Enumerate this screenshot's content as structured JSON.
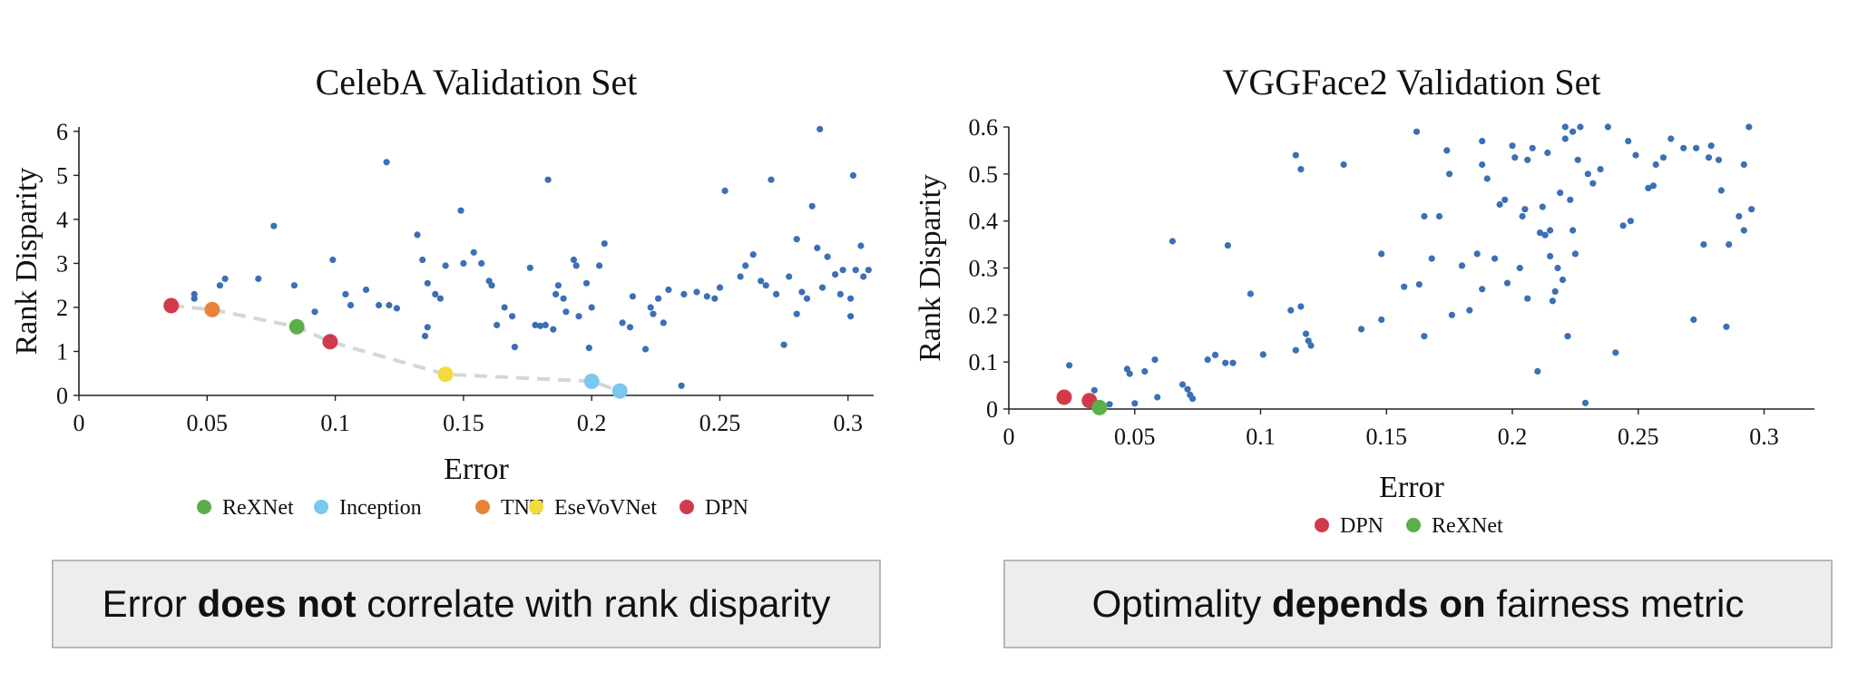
{
  "chart_data": [
    {
      "type": "scatter",
      "title": "CelebA Validation Set",
      "xlabel": "Error",
      "ylabel": "Rank Disparity",
      "xlim": [
        0,
        0.31
      ],
      "ylim": [
        0,
        6.1
      ],
      "xticks": [
        0,
        0.05,
        0.1,
        0.15,
        0.2,
        0.25,
        0.3
      ],
      "xtick_labels": [
        "0",
        "0.05",
        "0.1",
        "0.15",
        "0.2",
        "0.25",
        "0.3"
      ],
      "yticks": [
        0,
        1,
        2,
        3,
        4,
        5,
        6
      ],
      "ytick_labels": [
        "0",
        "1",
        "2",
        "3",
        "4",
        "5",
        "6"
      ],
      "grid": false,
      "point_color": "#3b6fb6",
      "pareto_front": [
        [
          0.036,
          2.04
        ],
        [
          0.052,
          1.95
        ],
        [
          0.085,
          1.56
        ],
        [
          0.098,
          1.22
        ],
        [
          0.143,
          0.48
        ],
        [
          0.2,
          0.32
        ],
        [
          0.211,
          0.1
        ]
      ],
      "highlights": [
        {
          "name": "DPN",
          "x": 0.036,
          "y": 2.04,
          "color": "#d13a4b"
        },
        {
          "name": "TNT",
          "x": 0.052,
          "y": 1.95,
          "color": "#e8843a"
        },
        {
          "name": "ReXNet",
          "x": 0.085,
          "y": 1.56,
          "color": "#5aaf4a"
        },
        {
          "name": "DPN",
          "x": 0.098,
          "y": 1.22,
          "color": "#d13a4b"
        },
        {
          "name": "EseVoVNet",
          "x": 0.143,
          "y": 0.48,
          "color": "#f2dc3c"
        },
        {
          "name": "Inception",
          "x": 0.2,
          "y": 0.32,
          "color": "#79c8ee"
        },
        {
          "name": "Inception",
          "x": 0.211,
          "y": 0.1,
          "color": "#79c8ee"
        }
      ],
      "legend": [
        {
          "label": "ReXNet",
          "color": "#5aaf4a"
        },
        {
          "label": "Inception",
          "color": "#79c8ee"
        },
        {
          "label": "TNT",
          "color": "#e8843a"
        },
        {
          "label": "EseVoVNet",
          "color": "#f2dc3c"
        },
        {
          "label": "DPN",
          "color": "#d13a4b"
        }
      ],
      "points": [
        [
          0.045,
          2.2
        ],
        [
          0.045,
          2.3
        ],
        [
          0.055,
          2.5
        ],
        [
          0.057,
          2.65
        ],
        [
          0.07,
          2.65
        ],
        [
          0.076,
          3.85
        ],
        [
          0.084,
          2.5
        ],
        [
          0.092,
          1.9
        ],
        [
          0.099,
          3.08
        ],
        [
          0.104,
          2.3
        ],
        [
          0.106,
          2.05
        ],
        [
          0.112,
          2.4
        ],
        [
          0.117,
          2.05
        ],
        [
          0.12,
          5.3
        ],
        [
          0.121,
          2.05
        ],
        [
          0.124,
          1.98
        ],
        [
          0.132,
          3.65
        ],
        [
          0.134,
          3.08
        ],
        [
          0.136,
          2.55
        ],
        [
          0.136,
          1.55
        ],
        [
          0.135,
          1.35
        ],
        [
          0.139,
          2.3
        ],
        [
          0.141,
          2.2
        ],
        [
          0.143,
          2.95
        ],
        [
          0.149,
          4.2
        ],
        [
          0.15,
          3.0
        ],
        [
          0.154,
          3.25
        ],
        [
          0.157,
          3.0
        ],
        [
          0.16,
          2.6
        ],
        [
          0.161,
          2.5
        ],
        [
          0.163,
          1.6
        ],
        [
          0.166,
          2.0
        ],
        [
          0.169,
          1.8
        ],
        [
          0.17,
          1.1
        ],
        [
          0.176,
          2.9
        ],
        [
          0.178,
          1.6
        ],
        [
          0.18,
          1.58
        ],
        [
          0.182,
          1.6
        ],
        [
          0.183,
          4.9
        ],
        [
          0.185,
          1.5
        ],
        [
          0.186,
          2.3
        ],
        [
          0.187,
          2.5
        ],
        [
          0.189,
          2.2
        ],
        [
          0.19,
          1.9
        ],
        [
          0.193,
          3.08
        ],
        [
          0.194,
          2.95
        ],
        [
          0.195,
          1.8
        ],
        [
          0.198,
          2.55
        ],
        [
          0.199,
          1.08
        ],
        [
          0.2,
          2.0
        ],
        [
          0.203,
          2.95
        ],
        [
          0.205,
          3.45
        ],
        [
          0.212,
          1.65
        ],
        [
          0.215,
          1.55
        ],
        [
          0.216,
          2.25
        ],
        [
          0.221,
          1.05
        ],
        [
          0.223,
          2.0
        ],
        [
          0.224,
          1.85
        ],
        [
          0.226,
          2.2
        ],
        [
          0.228,
          1.65
        ],
        [
          0.23,
          2.4
        ],
        [
          0.235,
          0.22
        ],
        [
          0.236,
          2.3
        ],
        [
          0.241,
          2.35
        ],
        [
          0.245,
          2.25
        ],
        [
          0.248,
          2.2
        ],
        [
          0.25,
          2.45
        ],
        [
          0.252,
          4.65
        ],
        [
          0.258,
          2.7
        ],
        [
          0.26,
          2.95
        ],
        [
          0.263,
          3.2
        ],
        [
          0.266,
          2.6
        ],
        [
          0.268,
          2.5
        ],
        [
          0.27,
          4.9
        ],
        [
          0.272,
          2.3
        ],
        [
          0.275,
          1.15
        ],
        [
          0.277,
          2.7
        ],
        [
          0.28,
          3.55
        ],
        [
          0.28,
          1.85
        ],
        [
          0.282,
          2.35
        ],
        [
          0.284,
          2.2
        ],
        [
          0.286,
          4.3
        ],
        [
          0.288,
          3.35
        ],
        [
          0.289,
          6.05
        ],
        [
          0.29,
          2.45
        ],
        [
          0.292,
          3.15
        ],
        [
          0.295,
          2.75
        ],
        [
          0.297,
          2.3
        ],
        [
          0.298,
          2.85
        ],
        [
          0.301,
          2.2
        ],
        [
          0.301,
          1.8
        ],
        [
          0.302,
          5.0
        ],
        [
          0.303,
          2.85
        ],
        [
          0.305,
          3.4
        ],
        [
          0.306,
          2.7
        ],
        [
          0.308,
          2.85
        ]
      ]
    },
    {
      "type": "scatter",
      "title": "VGGFace2 Validation Set",
      "xlabel": "Error",
      "ylabel": "Rank Disparity",
      "xlim": [
        0,
        0.32
      ],
      "ylim": [
        0,
        0.6
      ],
      "xticks": [
        0,
        0.05,
        0.1,
        0.15,
        0.2,
        0.25,
        0.3
      ],
      "xtick_labels": [
        "0",
        "0.05",
        "0.1",
        "0.15",
        "0.2",
        "0.25",
        "0.3"
      ],
      "yticks": [
        0,
        0.1,
        0.2,
        0.3,
        0.4,
        0.5,
        0.6
      ],
      "ytick_labels": [
        "0",
        "0.1",
        "0.2",
        "0.3",
        "0.4",
        "0.5",
        "0.6"
      ],
      "grid": false,
      "point_color": "#3b6fb6",
      "pareto_front": [],
      "highlights": [
        {
          "name": "DPN",
          "x": 0.022,
          "y": 0.025,
          "color": "#d13a4b"
        },
        {
          "name": "DPN",
          "x": 0.032,
          "y": 0.018,
          "color": "#d13a4b"
        },
        {
          "name": "ReXNet",
          "x": 0.036,
          "y": 0.003,
          "color": "#5aaf4a"
        }
      ],
      "legend": [
        {
          "label": "DPN",
          "color": "#d13a4b"
        },
        {
          "label": "ReXNet",
          "color": "#5aaf4a"
        }
      ],
      "points": [
        [
          0.024,
          0.093
        ],
        [
          0.034,
          0.04
        ],
        [
          0.04,
          0.01
        ],
        [
          0.047,
          0.085
        ],
        [
          0.048,
          0.075
        ],
        [
          0.05,
          0.012
        ],
        [
          0.054,
          0.08
        ],
        [
          0.058,
          0.105
        ],
        [
          0.059,
          0.025
        ],
        [
          0.065,
          0.357
        ],
        [
          0.069,
          0.052
        ],
        [
          0.071,
          0.042
        ],
        [
          0.072,
          0.03
        ],
        [
          0.073,
          0.022
        ],
        [
          0.079,
          0.105
        ],
        [
          0.082,
          0.115
        ],
        [
          0.086,
          0.098
        ],
        [
          0.087,
          0.348
        ],
        [
          0.089,
          0.098
        ],
        [
          0.096,
          0.245
        ],
        [
          0.101,
          0.116
        ],
        [
          0.112,
          0.21
        ],
        [
          0.114,
          0.125
        ],
        [
          0.114,
          0.54
        ],
        [
          0.116,
          0.218
        ],
        [
          0.116,
          0.51
        ],
        [
          0.118,
          0.16
        ],
        [
          0.119,
          0.145
        ],
        [
          0.12,
          0.135
        ],
        [
          0.133,
          0.52
        ],
        [
          0.14,
          0.17
        ],
        [
          0.148,
          0.19
        ],
        [
          0.148,
          0.33
        ],
        [
          0.157,
          0.26
        ],
        [
          0.162,
          0.59
        ],
        [
          0.163,
          0.265
        ],
        [
          0.165,
          0.41
        ],
        [
          0.165,
          0.155
        ],
        [
          0.168,
          0.32
        ],
        [
          0.171,
          0.41
        ],
        [
          0.174,
          0.55
        ],
        [
          0.175,
          0.5
        ],
        [
          0.176,
          0.2
        ],
        [
          0.18,
          0.305
        ],
        [
          0.183,
          0.21
        ],
        [
          0.186,
          0.33
        ],
        [
          0.188,
          0.255
        ],
        [
          0.19,
          0.49
        ],
        [
          0.188,
          0.52
        ],
        [
          0.188,
          0.57
        ],
        [
          0.193,
          0.32
        ],
        [
          0.195,
          0.435
        ],
        [
          0.197,
          0.445
        ],
        [
          0.198,
          0.268
        ],
        [
          0.2,
          0.56
        ],
        [
          0.201,
          0.535
        ],
        [
          0.203,
          0.3
        ],
        [
          0.204,
          0.41
        ],
        [
          0.205,
          0.425
        ],
        [
          0.206,
          0.235
        ],
        [
          0.206,
          0.53
        ],
        [
          0.208,
          0.555
        ],
        [
          0.21,
          0.08
        ],
        [
          0.211,
          0.375
        ],
        [
          0.212,
          0.43
        ],
        [
          0.213,
          0.37
        ],
        [
          0.214,
          0.545
        ],
        [
          0.215,
          0.325
        ],
        [
          0.215,
          0.38
        ],
        [
          0.216,
          0.23
        ],
        [
          0.217,
          0.25
        ],
        [
          0.218,
          0.3
        ],
        [
          0.219,
          0.46
        ],
        [
          0.22,
          0.275
        ],
        [
          0.221,
          0.575
        ],
        [
          0.221,
          0.6
        ],
        [
          0.222,
          0.155
        ],
        [
          0.223,
          0.445
        ],
        [
          0.224,
          0.59
        ],
        [
          0.224,
          0.38
        ],
        [
          0.225,
          0.33
        ],
        [
          0.226,
          0.53
        ],
        [
          0.227,
          0.6
        ],
        [
          0.229,
          0.013
        ],
        [
          0.23,
          0.5
        ],
        [
          0.232,
          0.48
        ],
        [
          0.235,
          0.51
        ],
        [
          0.238,
          0.6
        ],
        [
          0.241,
          0.12
        ],
        [
          0.244,
          0.39
        ],
        [
          0.246,
          0.57
        ],
        [
          0.247,
          0.4
        ],
        [
          0.249,
          0.54
        ],
        [
          0.254,
          0.47
        ],
        [
          0.256,
          0.475
        ],
        [
          0.257,
          0.52
        ],
        [
          0.26,
          0.535
        ],
        [
          0.263,
          0.575
        ],
        [
          0.268,
          0.555
        ],
        [
          0.272,
          0.19
        ],
        [
          0.273,
          0.555
        ],
        [
          0.276,
          0.35
        ],
        [
          0.278,
          0.535
        ],
        [
          0.279,
          0.56
        ],
        [
          0.282,
          0.53
        ],
        [
          0.283,
          0.465
        ],
        [
          0.285,
          0.175
        ],
        [
          0.286,
          0.35
        ],
        [
          0.29,
          0.41
        ],
        [
          0.292,
          0.52
        ],
        [
          0.292,
          0.38
        ],
        [
          0.294,
          0.6
        ],
        [
          0.295,
          0.425
        ]
      ]
    }
  ],
  "captions": {
    "left": {
      "before": "Error ",
      "bold": "does not",
      "after": " correlate with rank disparity"
    },
    "right": {
      "before": "Optimality ",
      "bold": "depends on",
      "after": " fairness metric"
    }
  }
}
